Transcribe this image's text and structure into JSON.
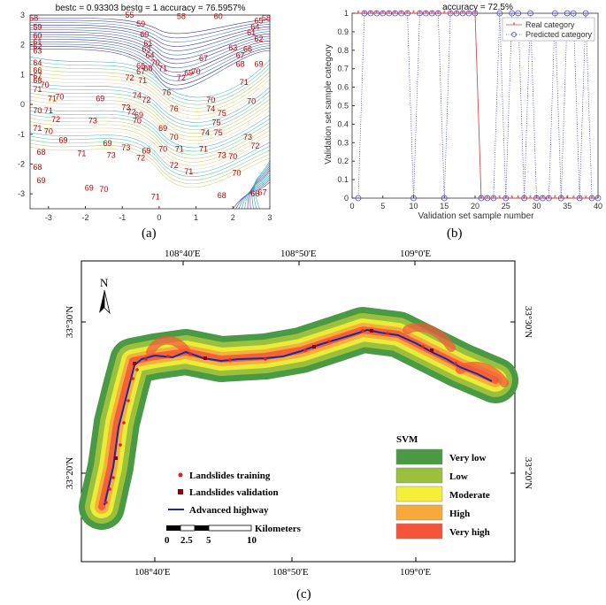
{
  "panel_a": {
    "title": "bestc = 0.93303   bestg = 1   accuracy = 76.5957%",
    "caption": "(a)"
  },
  "panel_b": {
    "title": "accuracy = 72.5%",
    "xlabel": "Validation set sample number",
    "ylabel": "Validation set sample category",
    "caption": "(b)"
  },
  "panel_c": {
    "caption": "(c)",
    "north": "N",
    "top_labels": [
      "108°40'E",
      "108°50'E",
      "109°0'E"
    ],
    "bottom_labels": [
      "108°40'E",
      "108°50'E",
      "109°0'E"
    ],
    "left_labels": [
      "33°30'N",
      "33°20'N"
    ],
    "right_labels": [
      "33°30'N",
      "33°20'N"
    ],
    "legend_title": "SVM",
    "classes": [
      {
        "label": "Very low",
        "color": "#4a9a45"
      },
      {
        "label": "Low",
        "color": "#9bc13c"
      },
      {
        "label": "Moderate",
        "color": "#f4f03a"
      },
      {
        "label": "High",
        "color": "#f7a93a"
      },
      {
        "label": "Very high",
        "color": "#f2553a"
      }
    ],
    "point_legend": {
      "training": "Landslides training",
      "validation": "Landslides validation",
      "highway": "Advanced highway"
    },
    "scalebar": {
      "unit": "Kilometers",
      "ticks": [
        "0",
        "2.5",
        "5",
        "10"
      ]
    }
  },
  "chart_data": [
    {
      "type": "contour",
      "title": "bestc = 0.93303   bestg = 1   accuracy = 76.5957%",
      "xlabel": "",
      "ylabel": "",
      "xlim": [
        -3.5,
        3
      ],
      "ylim": [
        -3.5,
        3
      ],
      "xticks": [
        -3,
        -2,
        -1,
        0,
        1,
        2,
        3
      ],
      "yticks": [
        -3,
        -2,
        -1,
        0,
        1,
        2,
        3
      ],
      "level_labels": [
        {
          "x": -3.4,
          "y": 2.9,
          "v": "58"
        },
        {
          "x": -0.8,
          "y": 3.0,
          "v": "55"
        },
        {
          "x": 0.6,
          "y": 2.95,
          "v": "58"
        },
        {
          "x": 1.6,
          "y": 2.95,
          "v": "60"
        },
        {
          "x": 2.9,
          "y": 2.9,
          "v": "58"
        },
        {
          "x": -3.3,
          "y": 2.6,
          "v": "59"
        },
        {
          "x": -3.3,
          "y": 2.3,
          "v": "60"
        },
        {
          "x": -3.3,
          "y": 2.1,
          "v": "61"
        },
        {
          "x": -3.3,
          "y": 1.95,
          "v": "62"
        },
        {
          "x": -3.3,
          "y": 1.8,
          "v": "63"
        },
        {
          "x": -0.5,
          "y": 2.7,
          "v": "59"
        },
        {
          "x": -0.4,
          "y": 2.35,
          "v": "60"
        },
        {
          "x": -0.3,
          "y": 2.05,
          "v": "61"
        },
        {
          "x": -0.35,
          "y": 1.85,
          "v": "63"
        },
        {
          "x": -0.25,
          "y": 1.65,
          "v": "64"
        },
        {
          "x": -0.5,
          "y": 1.3,
          "v": "66"
        },
        {
          "x": -0.5,
          "y": 1.1,
          "v": "67"
        },
        {
          "x": -0.3,
          "y": 1.2,
          "v": "68"
        },
        {
          "x": -0.1,
          "y": 1.4,
          "v": "70"
        },
        {
          "x": 2.7,
          "y": 2.8,
          "v": "65"
        },
        {
          "x": 2.6,
          "y": 2.6,
          "v": "64"
        },
        {
          "x": 2.5,
          "y": 2.4,
          "v": "61"
        },
        {
          "x": 2.7,
          "y": 2.2,
          "v": "62"
        },
        {
          "x": 2.0,
          "y": 1.9,
          "v": "63"
        },
        {
          "x": 2.4,
          "y": 1.85,
          "v": "66"
        },
        {
          "x": 2.2,
          "y": 1.65,
          "v": "67"
        },
        {
          "x": 1.2,
          "y": 1.55,
          "v": "67"
        },
        {
          "x": 2.2,
          "y": 1.35,
          "v": "68"
        },
        {
          "x": 2.7,
          "y": 1.35,
          "v": "69"
        },
        {
          "x": 1.0,
          "y": 1.1,
          "v": "70"
        },
        {
          "x": -3.3,
          "y": 1.4,
          "v": "64"
        },
        {
          "x": -3.3,
          "y": 1.15,
          "v": "66"
        },
        {
          "x": -3.3,
          "y": 0.95,
          "v": "67"
        },
        {
          "x": -3.3,
          "y": 0.8,
          "v": "68"
        },
        {
          "x": -3.1,
          "y": 0.65,
          "v": "70"
        },
        {
          "x": -3.3,
          "y": 0.5,
          "v": "71"
        },
        {
          "x": -2.7,
          "y": 0.25,
          "v": "70"
        },
        {
          "x": -2.9,
          "y": 0.2,
          "v": "71"
        },
        {
          "x": 0.1,
          "y": 1.2,
          "v": "71"
        },
        {
          "x": 0.8,
          "y": 1.05,
          "v": "69"
        },
        {
          "x": 0.6,
          "y": 0.9,
          "v": "72"
        },
        {
          "x": 2.3,
          "y": 0.75,
          "v": "71"
        },
        {
          "x": -0.8,
          "y": 0.9,
          "v": "72"
        },
        {
          "x": -0.45,
          "y": 0.8,
          "v": "71"
        },
        {
          "x": -1.6,
          "y": 0.2,
          "v": "69"
        },
        {
          "x": -0.6,
          "y": 0.3,
          "v": "74"
        },
        {
          "x": -0.35,
          "y": 0.15,
          "v": "72"
        },
        {
          "x": 0.2,
          "y": 0.4,
          "v": "76"
        },
        {
          "x": 1.4,
          "y": 0.15,
          "v": "70"
        },
        {
          "x": 2.5,
          "y": 0.1,
          "v": "70"
        },
        {
          "x": -3.3,
          "y": -0.2,
          "v": "70"
        },
        {
          "x": -3.0,
          "y": -0.2,
          "v": "71"
        },
        {
          "x": -0.9,
          "y": -0.1,
          "v": "73"
        },
        {
          "x": -0.75,
          "y": -0.25,
          "v": "72"
        },
        {
          "x": -0.55,
          "y": -0.35,
          "v": "69"
        },
        {
          "x": 0.4,
          "y": -0.15,
          "v": "76"
        },
        {
          "x": 1.4,
          "y": -0.15,
          "v": "74"
        },
        {
          "x": 1.7,
          "y": -0.3,
          "v": "75"
        },
        {
          "x": -2.8,
          "y": -0.5,
          "v": "72"
        },
        {
          "x": -1.8,
          "y": -0.55,
          "v": "73"
        },
        {
          "x": -0.6,
          "y": -0.55,
          "v": "70"
        },
        {
          "x": 1.55,
          "y": -0.6,
          "v": "75"
        },
        {
          "x": -3.3,
          "y": -0.8,
          "v": "71"
        },
        {
          "x": -3.0,
          "y": -0.9,
          "v": "70"
        },
        {
          "x": 0.1,
          "y": -0.8,
          "v": "69"
        },
        {
          "x": 1.25,
          "y": -0.95,
          "v": "74"
        },
        {
          "x": 1.6,
          "y": -0.95,
          "v": "75"
        },
        {
          "x": -2.6,
          "y": -1.2,
          "v": "69"
        },
        {
          "x": -1.4,
          "y": -1.3,
          "v": "69"
        },
        {
          "x": 0.4,
          "y": -1.1,
          "v": "70"
        },
        {
          "x": 2.4,
          "y": -1.1,
          "v": "73"
        },
        {
          "x": -0.9,
          "y": -1.45,
          "v": "73"
        },
        {
          "x": -0.35,
          "y": -1.55,
          "v": "69"
        },
        {
          "x": 0.1,
          "y": -1.5,
          "v": "70"
        },
        {
          "x": 0.55,
          "y": -1.5,
          "v": "71"
        },
        {
          "x": 1.2,
          "y": -1.5,
          "v": "71"
        },
        {
          "x": 2.6,
          "y": -1.4,
          "v": "72"
        },
        {
          "x": -3.2,
          "y": -1.6,
          "v": "68"
        },
        {
          "x": -2.1,
          "y": -1.65,
          "v": "71"
        },
        {
          "x": -1.3,
          "y": -1.7,
          "v": "73"
        },
        {
          "x": 1.7,
          "y": -1.7,
          "v": "73"
        },
        {
          "x": 2.0,
          "y": -1.75,
          "v": "70"
        },
        {
          "x": -3.3,
          "y": -2.1,
          "v": "68"
        },
        {
          "x": -0.5,
          "y": -1.8,
          "v": "72"
        },
        {
          "x": 0.4,
          "y": -2.05,
          "v": "72"
        },
        {
          "x": 0.8,
          "y": -2.25,
          "v": "71"
        },
        {
          "x": 2.1,
          "y": -2.3,
          "v": "70"
        },
        {
          "x": -3.2,
          "y": -2.55,
          "v": "69"
        },
        {
          "x": -1.9,
          "y": -2.8,
          "v": "69"
        },
        {
          "x": -1.5,
          "y": -2.85,
          "v": "70"
        },
        {
          "x": -0.1,
          "y": -3.1,
          "v": "71"
        },
        {
          "x": 1.7,
          "y": -3.05,
          "v": "68"
        },
        {
          "x": 2.6,
          "y": -3.0,
          "v": "66"
        },
        {
          "x": 2.8,
          "y": -2.95,
          "v": "67"
        }
      ]
    },
    {
      "type": "line",
      "title": "accuracy = 72.5%",
      "xlabel": "Validation set sample number",
      "ylabel": "Validation set sample category",
      "xlim": [
        0,
        40
      ],
      "ylim": [
        0,
        1
      ],
      "xticks": [
        0,
        5,
        10,
        15,
        20,
        25,
        30,
        35,
        40
      ],
      "yticks": [
        0,
        0.1,
        0.2,
        0.3,
        0.4,
        0.5,
        0.6,
        0.7,
        0.8,
        0.9,
        1
      ],
      "legend": {
        "position": "top-right",
        "entries": [
          "Real category",
          "Predicted category"
        ]
      },
      "x": [
        1,
        2,
        3,
        4,
        5,
        6,
        7,
        8,
        9,
        10,
        11,
        12,
        13,
        14,
        15,
        16,
        17,
        18,
        19,
        20,
        21,
        22,
        23,
        24,
        25,
        26,
        27,
        28,
        29,
        30,
        31,
        32,
        33,
        34,
        35,
        36,
        37,
        38,
        39,
        40
      ],
      "series": [
        {
          "name": "Real category",
          "values": [
            1,
            1,
            1,
            1,
            1,
            1,
            1,
            1,
            1,
            1,
            1,
            1,
            1,
            1,
            1,
            1,
            1,
            1,
            1,
            1,
            0,
            0,
            0,
            0,
            0,
            0,
            0,
            0,
            0,
            0,
            0,
            0,
            0,
            0,
            0,
            0,
            0,
            0,
            0,
            0
          ]
        },
        {
          "name": "Predicted category",
          "values": [
            0,
            1,
            1,
            1,
            1,
            1,
            1,
            1,
            1,
            0,
            1,
            1,
            1,
            1,
            0,
            1,
            1,
            1,
            1,
            1,
            0,
            0,
            0,
            1,
            0,
            1,
            1,
            0,
            1,
            0,
            0,
            0,
            1,
            0,
            1,
            1,
            0,
            1,
            0,
            0
          ]
        }
      ]
    }
  ]
}
